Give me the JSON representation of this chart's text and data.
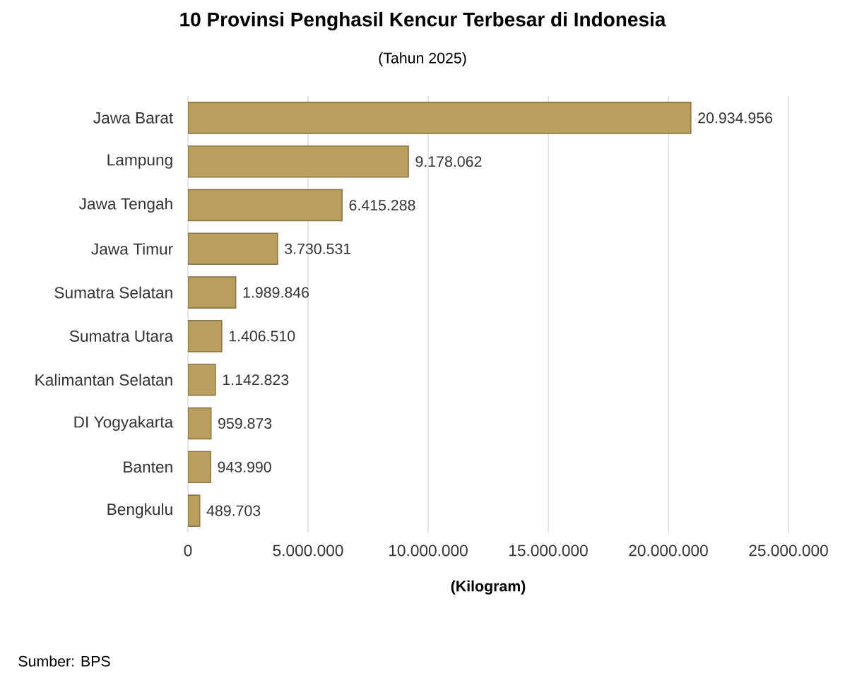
{
  "chart_data": {
    "type": "bar",
    "orientation": "horizontal",
    "title": "10 Provinsi Penghasil Kencur Terbesar di Indonesia",
    "subtitle": "(Tahun 2025)",
    "xlabel": "(Kilogram)",
    "categories": [
      "Jawa Barat",
      "Lampung",
      "Jawa Tengah",
      "Jawa Timur",
      "Sumatra Selatan",
      "Sumatra Utara",
      "Kalimantan Selatan",
      "DI Yogyakarta",
      "Banten",
      "Bengkulu"
    ],
    "values": [
      20934956,
      9178062,
      6415288,
      3730531,
      1989846,
      1406510,
      1142823,
      959873,
      943990,
      489703
    ],
    "value_labels": [
      "20.934.956",
      "9.178.062",
      "6.415.288",
      "3.730.531",
      "1.989.846",
      "1.406.510",
      "1.142.823",
      "959.873",
      "943.990",
      "489.703"
    ],
    "color": "#bb9e5e",
    "xlim": [
      0,
      25000000
    ],
    "xticks": [
      0,
      {
        "value": 5000000,
        "label": "5.000.000"
      },
      {
        "value": 10000000,
        "label": "10.000.000"
      },
      {
        "value": 15000000,
        "label": "15.000.000"
      },
      {
        "value": 20000000,
        "label": "20.000.000"
      },
      {
        "value": 25000000,
        "label": "25.000.000"
      }
    ],
    "grid": "x",
    "annotations": [
      "Sumber: BPS"
    ]
  }
}
